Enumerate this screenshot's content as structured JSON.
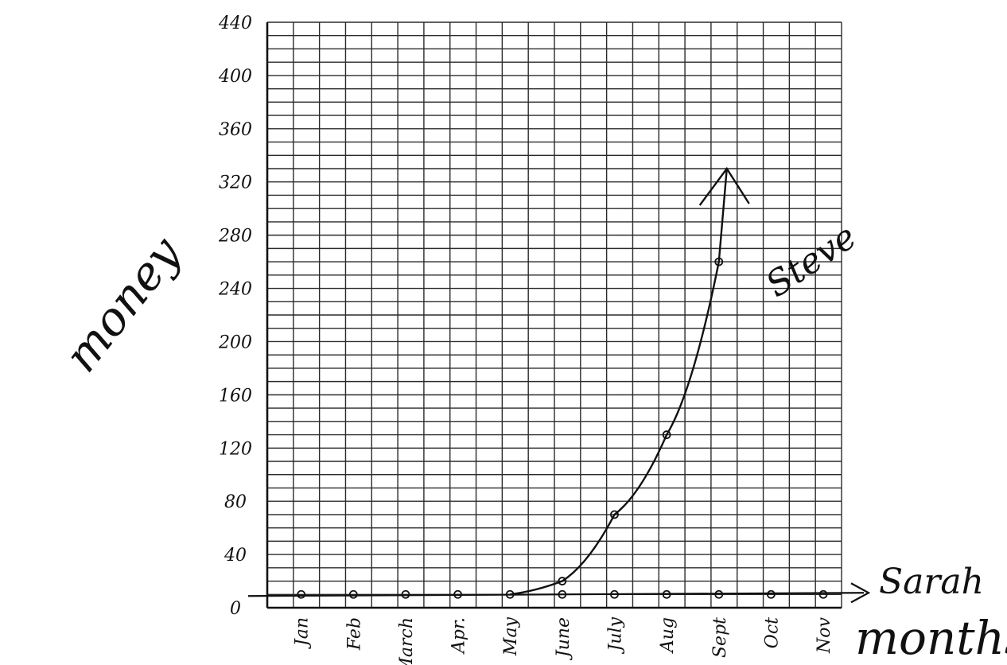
{
  "chart_data": {
    "type": "line",
    "ylabel": "money",
    "xlabel": "months",
    "categories": [
      "Jan",
      "Feb",
      "March",
      "Apr.",
      "May",
      "June",
      "July",
      "Aug",
      "Sept",
      "Oct",
      "Nov"
    ],
    "yticks": [
      "0",
      "40",
      "80",
      "120",
      "160",
      "200",
      "240",
      "280",
      "320",
      "360",
      "400",
      "440"
    ],
    "ylim": [
      0,
      440
    ],
    "grid": true,
    "series": [
      {
        "name": "Steve",
        "values": [
          null,
          null,
          null,
          null,
          null,
          20,
          70,
          130,
          260,
          null,
          null
        ],
        "color": "#111111"
      },
      {
        "name": "Sarah",
        "values": [
          10,
          10,
          10,
          10,
          10,
          10,
          10,
          10,
          10,
          10,
          10
        ],
        "color": "#111111"
      }
    ]
  }
}
